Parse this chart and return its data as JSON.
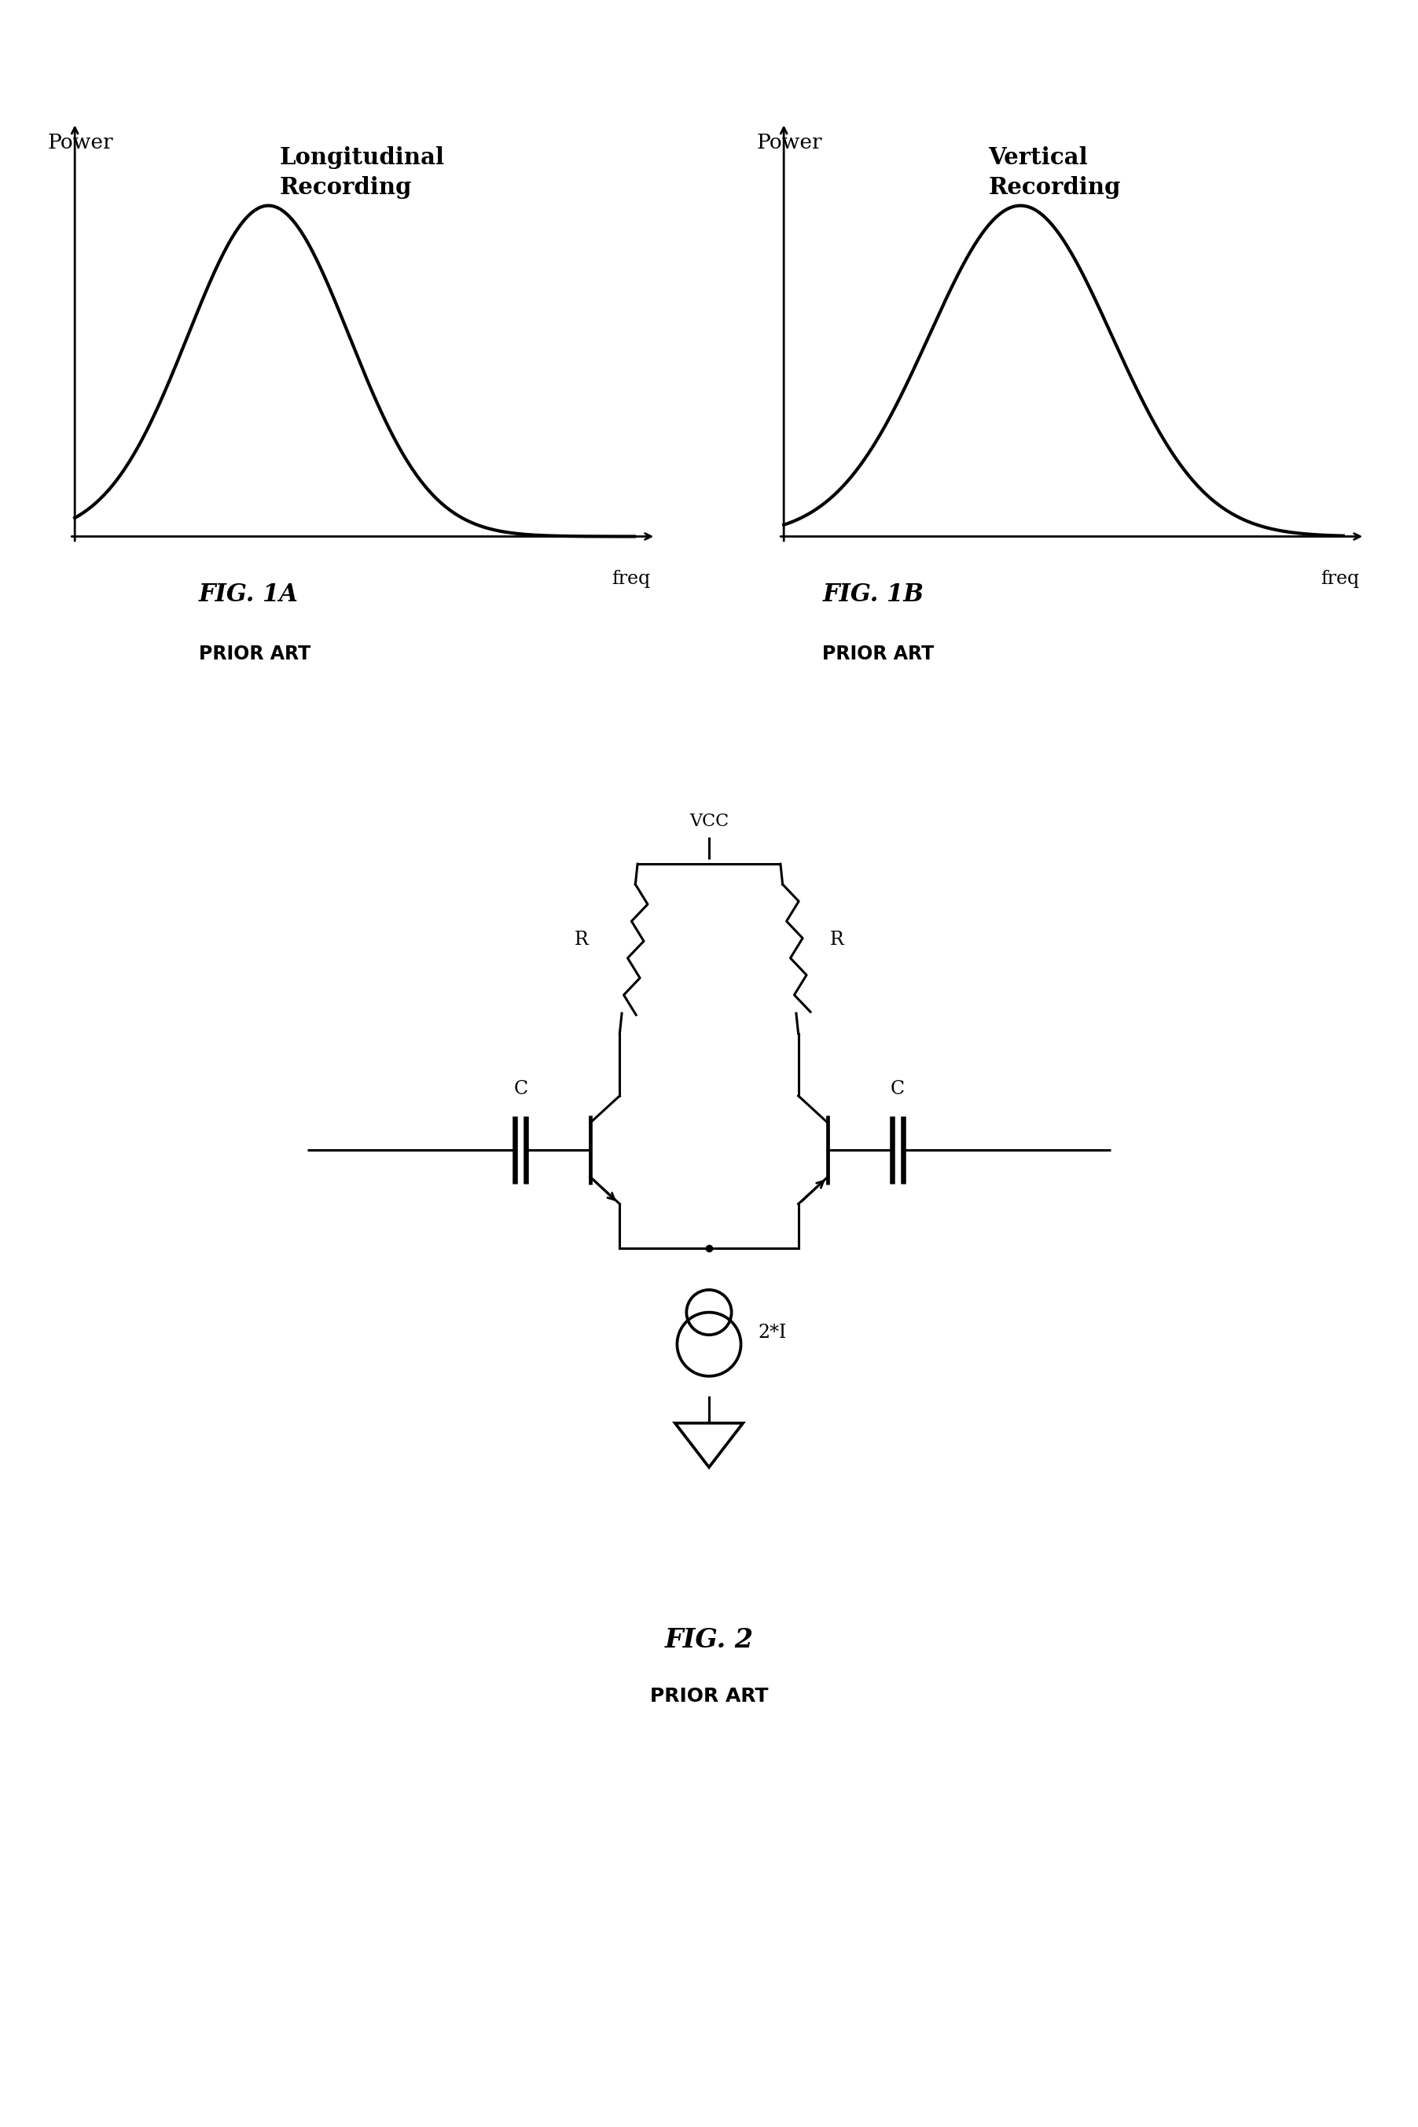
{
  "fig_width": 18.04,
  "fig_height": 27.06,
  "bg_color": "#ffffff",
  "fig1a_title": "Longitudinal\nRecording",
  "fig1b_title": "Vertical\nRecording",
  "fig1a_label": "FIG. 1A",
  "fig1b_label": "FIG. 1B",
  "prior_art": "PRIOR ART",
  "fig2_label": "FIG. 2",
  "ylabel": "Power",
  "xlabel": "freq",
  "font_color": "#000000",
  "line_color": "#000000",
  "curve_lw": 3.0,
  "axis_lw": 2.0,
  "graph1a_gauss_mu": 1.8,
  "graph1a_gauss_sigma": 0.75,
  "graph1b_gauss_mu": 2.2,
  "graph1b_gauss_sigma": 0.85
}
